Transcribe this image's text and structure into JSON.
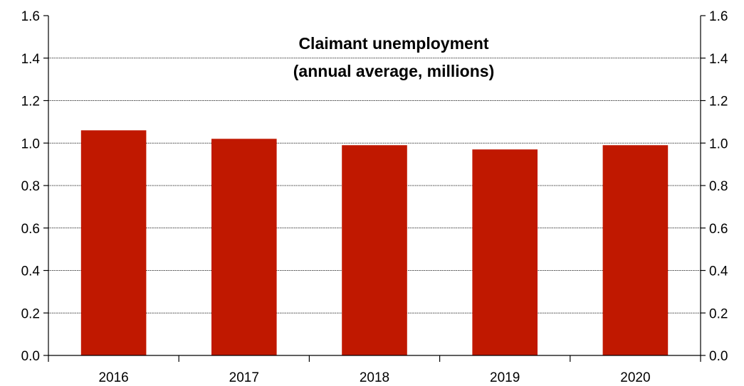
{
  "chart_data": {
    "type": "bar",
    "title": "Claimant unemployment",
    "subtitle": "(annual average, millions)",
    "categories": [
      "2016",
      "2017",
      "2018",
      "2019",
      "2020"
    ],
    "values": [
      1.06,
      1.02,
      0.99,
      0.97,
      0.99
    ],
    "ylim": [
      0,
      1.6
    ],
    "yticks": [
      "0.0",
      "0.2",
      "0.4",
      "0.6",
      "0.8",
      "1.0",
      "1.2",
      "1.4",
      "1.6"
    ],
    "dual_y_axis": true,
    "grid": true,
    "bar_color": "#c01800"
  }
}
